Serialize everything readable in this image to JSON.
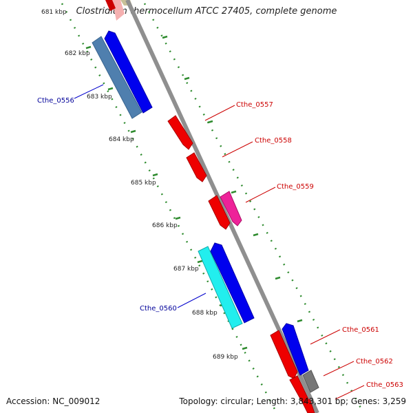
{
  "title": "Clostridium thermocellum ATCC 27405, complete genome",
  "accession": "Accession: NC_009012",
  "summary": "Topology: circular; Length: 3,843,301 bp; Genes: 3,259",
  "kbp_labels": [
    "681 kbp",
    "682 kbp",
    "683 kbp",
    "684 kbp",
    "685 kbp",
    "686 kbp",
    "687 kbp",
    "688 kbp",
    "689 kbp"
  ],
  "genes": [
    {
      "id": "cthe0556",
      "name": "Cthe_0556",
      "color": "#000099"
    },
    {
      "id": "cthe0557",
      "name": "Cthe_0557",
      "color": "#cc0000"
    },
    {
      "id": "cthe0558",
      "name": "Cthe_0558",
      "color": "#cc0000"
    },
    {
      "id": "cthe0559",
      "name": "Cthe_0559",
      "color": "#cc0000"
    },
    {
      "id": "cthe0560",
      "name": "Cthe_0560",
      "color": "#000099"
    },
    {
      "id": "cthe0561",
      "name": "Cthe_0561",
      "color": "#cc0000"
    },
    {
      "id": "cthe0562",
      "name": "Cthe_0562",
      "color": "#cc0000"
    },
    {
      "id": "cthe0563",
      "name": "Cthe_0563",
      "color": "#cc0000"
    }
  ],
  "colors": {
    "backbone": "#8f8f8f",
    "tick": "#2e8b2e",
    "blue_cds": "#0000ee",
    "red_cds": "#ee0000",
    "steelblue_cds": "#4f7fae",
    "cyan_cds": "#22eeee",
    "magenta_cds": "#ee2299",
    "gray_cds": "#777777"
  }
}
